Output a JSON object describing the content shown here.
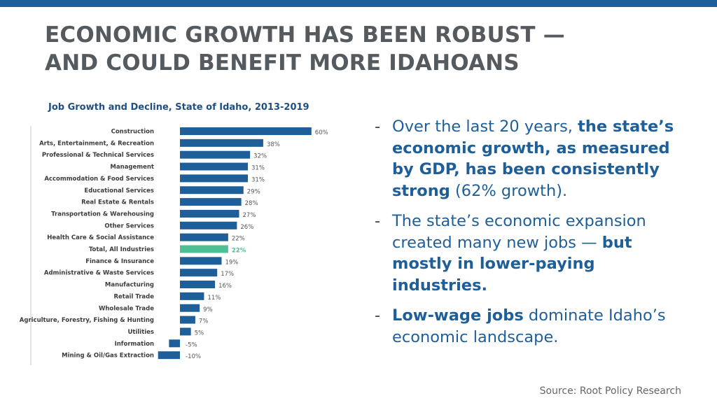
{
  "slide": {
    "title_line1": "ECONOMIC GROWTH HAS BEEN ROBUST —",
    "title_line2": "AND COULD BENEFIT MORE IDAHOANS",
    "source": "Source: Root Policy Research"
  },
  "bullets": [
    {
      "dash": "-",
      "t1": "Over the last 20 years, ",
      "b1": "the state’s economic growth, as measured by GDP, has been consistently strong",
      "t2": " (62% growth).",
      "b2": "",
      "t3": ""
    },
    {
      "dash": "-",
      "t1": "The state’s economic expansion created many new jobs — ",
      "b1": "but mostly in lower-paying industries.",
      "t2": "",
      "b2": "",
      "t3": ""
    },
    {
      "dash": "-",
      "t1": "",
      "b1": "Low-wage jobs",
      "t2": " dominate Idaho’s economic landscape.",
      "b2": "",
      "t3": ""
    }
  ],
  "chart_data": {
    "type": "bar",
    "orientation": "horizontal",
    "title": "Job Growth and Decline, State of Idaho, 2013-2019",
    "categories": [
      "Construction",
      "Arts, Entertainment, & Recreation",
      "Professional & Technical Services",
      "Management",
      "Accommodation & Food Services",
      "Educational Services",
      "Real Estate & Rentals",
      "Transportation & Warehousing",
      "Other Services",
      "Health Care & Social Assistance",
      "Total, All Industries",
      "Finance & Insurance",
      "Administrative & Waste Services",
      "Manufacturing",
      "Retail Trade",
      "Wholesale Trade",
      "Agriculture, Forestry, Fishing & Hunting",
      "Utilities",
      "Information",
      "Mining & Oil/Gas Extraction"
    ],
    "values": [
      60,
      38,
      32,
      31,
      31,
      29,
      28,
      27,
      26,
      22,
      22,
      19,
      17,
      16,
      11,
      9,
      7,
      5,
      -5,
      -10
    ],
    "value_labels": [
      "60%",
      "38%",
      "32%",
      "31%",
      "31%",
      "29%",
      "28%",
      "27%",
      "26%",
      "22%",
      "22%",
      "19%",
      "17%",
      "16%",
      "11%",
      "9%",
      "7%",
      "5%",
      "-5%",
      "-10%"
    ],
    "highlight": "Total, All Industries",
    "colors": {
      "bar": "#1f5f99",
      "highlight": "#4dbf94"
    },
    "xlim": [
      -10,
      60
    ],
    "grid": false,
    "legend": "none"
  }
}
